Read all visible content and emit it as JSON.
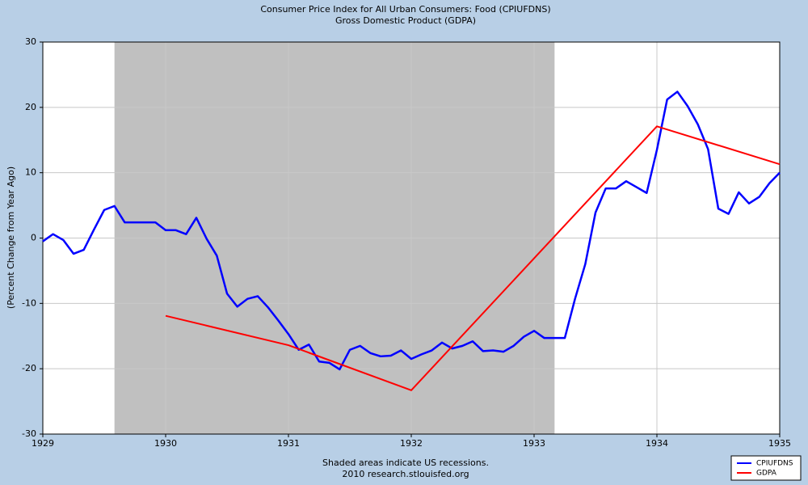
{
  "chart_data": {
    "type": "line",
    "title": "Consumer Price Index for All Urban Consumers: Food (CPIUFDNS)",
    "subtitle": "Gross Domestic Product (GDPA)",
    "y_label": "(Percent Change from Year Ago)",
    "footnote": "Shaded areas indicate US recessions.",
    "source": "2010 research.stlouisfed.org",
    "xlim": [
      1929,
      1935
    ],
    "xticks": [
      1929,
      1930,
      1931,
      1932,
      1933,
      1934,
      1935
    ],
    "ylim": [
      -30,
      30
    ],
    "yticks": [
      -30,
      -20,
      -10,
      0,
      10,
      20,
      30
    ],
    "grid": true,
    "legend": "bottom-right",
    "recessions": [
      {
        "start": "1929-08",
        "end": "1933-03",
        "color": "#c0c0c0"
      }
    ],
    "series": [
      {
        "name": "CPIUFDNS",
        "color": "#0000ff",
        "width": 2.5,
        "x": [
          "1929-01",
          "1929-02",
          "1929-03",
          "1929-04",
          "1929-05",
          "1929-06",
          "1929-07",
          "1929-08",
          "1929-09",
          "1929-10",
          "1929-11",
          "1929-12",
          "1930-01",
          "1930-02",
          "1930-03",
          "1930-04",
          "1930-05",
          "1930-06",
          "1930-07",
          "1930-08",
          "1930-09",
          "1930-10",
          "1930-11",
          "1930-12",
          "1931-01",
          "1931-02",
          "1931-03",
          "1931-04",
          "1931-05",
          "1931-06",
          "1931-07",
          "1931-08",
          "1931-09",
          "1931-10",
          "1931-11",
          "1931-12",
          "1932-01",
          "1932-02",
          "1932-03",
          "1932-04",
          "1932-05",
          "1932-06",
          "1932-07",
          "1932-08",
          "1932-09",
          "1932-10",
          "1932-11",
          "1932-12",
          "1933-01",
          "1933-02",
          "1933-03",
          "1933-04",
          "1933-05",
          "1933-06",
          "1933-07",
          "1933-08",
          "1933-09",
          "1933-10",
          "1933-11",
          "1933-12",
          "1934-01",
          "1934-02",
          "1934-03",
          "1934-04",
          "1934-05",
          "1934-06",
          "1934-07",
          "1934-08",
          "1934-09",
          "1934-10",
          "1934-11",
          "1934-12",
          "1935-01"
        ],
        "values": [
          -0.5,
          0.6,
          -0.3,
          -2.4,
          -1.8,
          1.3,
          4.3,
          4.9,
          2.4,
          2.4,
          2.4,
          2.4,
          1.2,
          1.2,
          0.6,
          3.1,
          -0.1,
          -2.7,
          -8.5,
          -10.5,
          -9.3,
          -8.9,
          -10.6,
          -12.6,
          -14.7,
          -17.1,
          -16.3,
          -18.9,
          -19.1,
          -20.1,
          -17.1,
          -16.5,
          -17.6,
          -18.1,
          -18.0,
          -17.2,
          -18.5,
          -17.8,
          -17.2,
          -16.0,
          -16.9,
          -16.5,
          -15.8,
          -17.3,
          -17.2,
          -17.4,
          -16.5,
          -15.1,
          -14.2,
          -15.3,
          -15.3,
          -15.3,
          -9.3,
          -4.0,
          3.9,
          7.6,
          7.6,
          8.7,
          7.8,
          6.9,
          13.5,
          21.2,
          22.4,
          20.2,
          17.4,
          13.6,
          4.5,
          3.7,
          7.0,
          5.3,
          6.3,
          8.4,
          10.0
        ]
      },
      {
        "name": "GDPA",
        "color": "#ff0000",
        "width": 2,
        "x": [
          "1930-01",
          "1931-01",
          "1932-01",
          "1933-01",
          "1934-01",
          "1935-01"
        ],
        "values": [
          -11.9,
          -16.4,
          -23.3,
          -3.1,
          17.1,
          11.3
        ]
      }
    ]
  }
}
